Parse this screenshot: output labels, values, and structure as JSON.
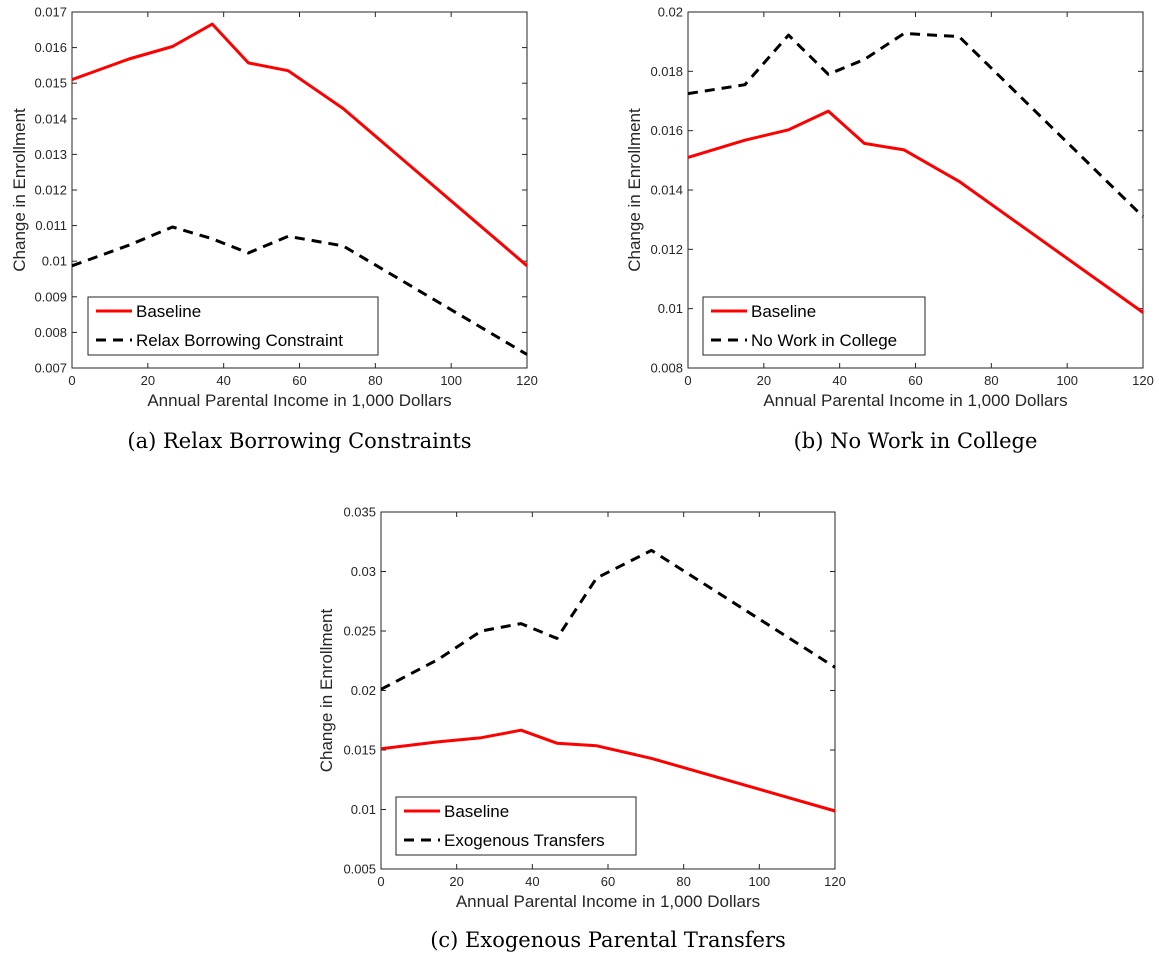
{
  "chart_data": [
    {
      "type": "line",
      "caption": "(a) Relax Borrowing Constraints",
      "xlabel": "Annual Parental Income in 1,000 Dollars",
      "ylabel": "Change in Enrollment",
      "xlim": [
        0,
        120
      ],
      "ylim": [
        0.007,
        0.017
      ],
      "xticks": [
        "0",
        "20",
        "40",
        "60",
        "80",
        "100",
        "120"
      ],
      "yticks": [
        "0.007",
        "0.008",
        "0.009",
        "0.01",
        "0.011",
        "0.012",
        "0.013",
        "0.014",
        "0.015",
        "0.016",
        "0.017"
      ],
      "legend_position": "bottom-left",
      "series": [
        {
          "name": "Baseline",
          "color": "#ff0000",
          "style": "solid",
          "x": [
            0,
            15,
            26.5,
            37,
            46.5,
            57,
            71.5,
            120
          ],
          "y": [
            0.0151,
            0.01568,
            0.01603,
            0.01666,
            0.01557,
            0.01535,
            0.01429,
            0.00987
          ]
        },
        {
          "name": "Relax Borrowing Constraint",
          "color": "#000000",
          "style": "dashed",
          "x": [
            0,
            15,
            26.5,
            37,
            46.5,
            57,
            71.5,
            120
          ],
          "y": [
            0.00987,
            0.01045,
            0.01096,
            0.01063,
            0.01023,
            0.0107,
            0.01043,
            0.00738
          ]
        }
      ]
    },
    {
      "type": "line",
      "caption": "(b) No Work in College",
      "xlabel": "Annual Parental Income in 1,000 Dollars",
      "ylabel": "Change in Enrollment",
      "xlim": [
        0,
        120
      ],
      "ylim": [
        0.008,
        0.02
      ],
      "xticks": [
        "0",
        "20",
        "40",
        "60",
        "80",
        "100",
        "120"
      ],
      "yticks": [
        "0.008",
        "0.01",
        "0.012",
        "0.014",
        "0.016",
        "0.018",
        "0.02"
      ],
      "legend_position": "bottom-left",
      "series": [
        {
          "name": "Baseline",
          "color": "#ff0000",
          "style": "solid",
          "x": [
            0,
            15,
            26.5,
            37,
            46.5,
            57,
            71.5,
            120
          ],
          "y": [
            0.0151,
            0.01568,
            0.01603,
            0.01666,
            0.01557,
            0.01535,
            0.01429,
            0.00987
          ]
        },
        {
          "name": "No Work in College",
          "color": "#000000",
          "style": "dashed",
          "x": [
            0,
            15,
            26.5,
            37,
            46.5,
            57,
            71.5,
            120
          ],
          "y": [
            0.01725,
            0.01755,
            0.01922,
            0.0179,
            0.0184,
            0.01928,
            0.01917,
            0.0131
          ]
        }
      ]
    },
    {
      "type": "line",
      "caption": "(c) Exogenous Parental Transfers",
      "xlabel": "Annual Parental Income in 1,000 Dollars",
      "ylabel": "Change in Enrollment",
      "xlim": [
        0,
        120
      ],
      "ylim": [
        0.005,
        0.035
      ],
      "xticks": [
        "0",
        "20",
        "40",
        "60",
        "80",
        "100",
        "120"
      ],
      "yticks": [
        "0.005",
        "0.01",
        "0.015",
        "0.02",
        "0.025",
        "0.03",
        "0.035"
      ],
      "legend_position": "bottom-left",
      "series": [
        {
          "name": "Baseline",
          "color": "#ff0000",
          "style": "solid",
          "x": [
            0,
            15,
            26.5,
            37,
            46.5,
            57,
            71.5,
            120
          ],
          "y": [
            0.0151,
            0.01568,
            0.01603,
            0.01666,
            0.01557,
            0.01535,
            0.01429,
            0.00987
          ]
        },
        {
          "name": "Exogenous Transfers",
          "color": "#000000",
          "style": "dashed",
          "x": [
            0,
            15,
            26.5,
            37,
            46.5,
            57,
            71.5,
            120
          ],
          "y": [
            0.0201,
            0.0226,
            0.025,
            0.02562,
            0.02438,
            0.02945,
            0.03177,
            0.02195
          ]
        }
      ]
    }
  ]
}
